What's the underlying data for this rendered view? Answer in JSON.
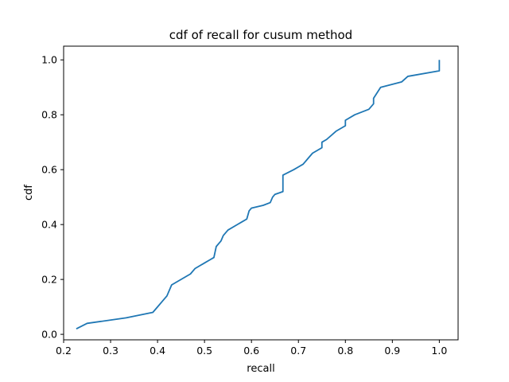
{
  "chart_data": {
    "type": "line",
    "title": "cdf of recall for cusum method",
    "xlabel": "recall",
    "ylabel": "cdf",
    "xlim": [
      0.2,
      1.04
    ],
    "ylim": [
      -0.02,
      1.05
    ],
    "xticks": [
      0.2,
      0.3,
      0.4,
      0.5,
      0.6,
      0.7,
      0.8,
      0.9,
      1.0
    ],
    "xtick_labels": [
      "0.2",
      "0.3",
      "0.4",
      "0.5",
      "0.6",
      "0.7",
      "0.8",
      "0.9",
      "1.0"
    ],
    "yticks": [
      0.0,
      0.2,
      0.4,
      0.6,
      0.8,
      1.0
    ],
    "ytick_labels": [
      "0.0",
      "0.2",
      "0.4",
      "0.6",
      "0.8",
      "1.0"
    ],
    "grid": false,
    "line_color": "#1f77b4",
    "series": [
      {
        "x": [
          0.227,
          0.25,
          0.333,
          0.39,
          0.4,
          0.41,
          0.42,
          0.43,
          0.45,
          0.47,
          0.48,
          0.49,
          0.5,
          0.51,
          0.52,
          0.525,
          0.535,
          0.54,
          0.55,
          0.57,
          0.58,
          0.59,
          0.595,
          0.6,
          0.625,
          0.64,
          0.645,
          0.65,
          0.667,
          0.667,
          0.69,
          0.7,
          0.71,
          0.72,
          0.73,
          0.75,
          0.75,
          0.76,
          0.78,
          0.8,
          0.8,
          0.82,
          0.85,
          0.86,
          0.86,
          0.875,
          0.92,
          0.933,
          1.0,
          1.0
        ],
        "y": [
          0.02,
          0.04,
          0.06,
          0.08,
          0.1,
          0.12,
          0.14,
          0.18,
          0.2,
          0.22,
          0.24,
          0.25,
          0.26,
          0.27,
          0.28,
          0.32,
          0.34,
          0.36,
          0.38,
          0.4,
          0.41,
          0.42,
          0.45,
          0.46,
          0.47,
          0.48,
          0.5,
          0.51,
          0.52,
          0.58,
          0.6,
          0.61,
          0.62,
          0.64,
          0.66,
          0.68,
          0.7,
          0.71,
          0.74,
          0.76,
          0.78,
          0.8,
          0.82,
          0.84,
          0.86,
          0.9,
          0.92,
          0.94,
          0.96,
          1.0
        ]
      }
    ]
  }
}
